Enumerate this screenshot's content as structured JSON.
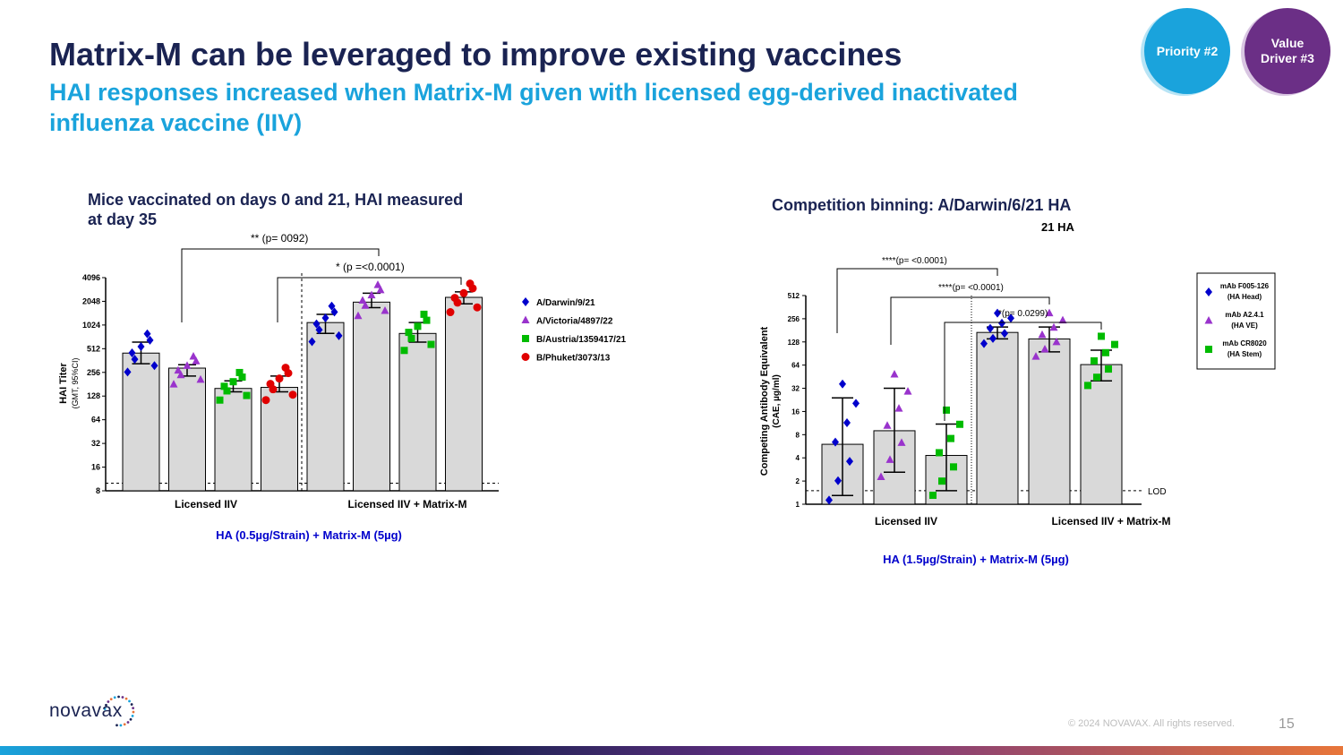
{
  "header": {
    "title": "Matrix-M can be leveraged to improve existing vaccines",
    "subtitle": "HAI responses increased when Matrix-M given with licensed egg-derived inactivated influenza vaccine (IIV)"
  },
  "badges": [
    {
      "label_line1": "Priority #2",
      "label_line2": ""
    },
    {
      "label_line1": "Value",
      "label_line2": "Driver #3"
    }
  ],
  "footer": {
    "logo": "novavax",
    "copyright": "© 2024 NOVAVAX. All rights reserved.",
    "page_number": "15"
  },
  "colors": {
    "title": "#1a2352",
    "accent": "#1aa3dc",
    "purple": "#6b2f86",
    "series_blue": "#0000cc",
    "series_purple": "#9933cc",
    "series_green": "#00bb00",
    "series_red": "#e00000"
  },
  "chart_data": [
    {
      "type": "bar",
      "title": "Mice vaccinated on days 0 and 21, HAI measured at day 35",
      "ylabel": "HAI Titer",
      "ylabel_sub": "(GMT, 95%CI)",
      "yscale": "log2",
      "ylim": [
        8,
        4096
      ],
      "yticks": [
        "4096",
        "2048",
        "1024",
        "512",
        "256",
        "128",
        "64",
        "32",
        "16",
        "8"
      ],
      "yticks_values": [
        4096,
        2048,
        1024,
        512,
        256,
        128,
        64,
        32,
        16,
        8
      ],
      "xgroups": [
        "Licensed IIV",
        "Licensed IIV + Matrix-M"
      ],
      "xlabel": "HA (0.5µg/Strain) + Matrix-M (5µg)",
      "series_names": [
        "A/Darwin/9/21",
        "A/Victoria/4897/22",
        "B/Austria/1359417/21",
        "B/Phuket/3073/13"
      ],
      "bars": [
        {
          "group": "Licensed IIV",
          "series": "A/Darwin/9/21",
          "value": 450,
          "ci": [
            330,
            620
          ]
        },
        {
          "group": "Licensed IIV",
          "series": "A/Victoria/4897/22",
          "value": 290,
          "ci": [
            230,
            320
          ]
        },
        {
          "group": "Licensed IIV",
          "series": "B/Austria/1359417/21",
          "value": 160,
          "ci": [
            145,
            200
          ]
        },
        {
          "group": "Licensed IIV",
          "series": "B/Phuket/3073/13",
          "value": 165,
          "ci": [
            145,
            230
          ]
        },
        {
          "group": "Licensed IIV + Matrix-M",
          "series": "A/Darwin/9/21",
          "value": 1100,
          "ci": [
            800,
            1400
          ]
        },
        {
          "group": "Licensed IIV + Matrix-M",
          "series": "A/Victoria/4897/22",
          "value": 2000,
          "ci": [
            1700,
            2600
          ]
        },
        {
          "group": "Licensed IIV + Matrix-M",
          "series": "B/Austria/1359417/21",
          "value": 800,
          "ci": [
            620,
            1100
          ]
        },
        {
          "group": "Licensed IIV + Matrix-M",
          "series": "B/Phuket/3073/13",
          "value": 2300,
          "ci": [
            1900,
            2700
          ]
        }
      ],
      "reference_line": 10,
      "annotations": [
        {
          "text": "(p= 0092)",
          "stars": "**"
        },
        {
          "text": "(p =<0.0001)",
          "stars": "*"
        }
      ]
    },
    {
      "type": "bar",
      "title": "Competition binning: A/Darwin/6/21 HA",
      "title_fragment": "21 HA",
      "ylabel": "Competing Antibody Equivalent",
      "ylabel_sub": "(CAE, µg/ml)",
      "yscale": "log2",
      "ylim": [
        1,
        512
      ],
      "yticks": [
        "512",
        "256",
        "128",
        "64",
        "32",
        "16",
        "8",
        "4",
        "2",
        "1"
      ],
      "yticks_values": [
        512,
        256,
        128,
        64,
        32,
        16,
        8,
        4,
        2,
        1
      ],
      "xgroups": [
        "Licensed IIV",
        "Licensed IIV + Matrix-M"
      ],
      "xlabel": "HA (1.5µg/Strain) + Matrix-M (5µg)",
      "series_names": [
        "mAb F005-126 (HA Head)",
        "mAb A2.4.1 (HA VE)",
        "mAb CR8020 (HA Stem)"
      ],
      "legend": [
        {
          "line1": "mAb F005-126",
          "line2": "(HA Head)"
        },
        {
          "line1": "mAb A2.4.1",
          "line2": "(HA VE)"
        },
        {
          "line1": "mAb CR8020",
          "line2": "(HA Stem)"
        }
      ],
      "bars": [
        {
          "group": "Licensed IIV",
          "series": "mAb F005-126 (HA Head)",
          "value": 6,
          "ci": [
            1.3,
            24
          ]
        },
        {
          "group": "Licensed IIV",
          "series": "mAb A2.4.1 (HA VE)",
          "value": 9,
          "ci": [
            2.6,
            32
          ]
        },
        {
          "group": "Licensed IIV",
          "series": "mAb CR8020 (HA Stem)",
          "value": 4.3,
          "ci": [
            1.5,
            11
          ]
        },
        {
          "group": "Licensed IIV + Matrix-M",
          "series": "mAb F005-126 (HA Head)",
          "value": 170,
          "ci": [
            140,
            200
          ]
        },
        {
          "group": "Licensed IIV + Matrix-M",
          "series": "mAb A2.4.1 (HA VE)",
          "value": 140,
          "ci": [
            95,
            200
          ]
        },
        {
          "group": "Licensed IIV + Matrix-M",
          "series": "mAb CR8020 (HA Stem)",
          "value": 65,
          "ci": [
            40,
            100
          ]
        }
      ],
      "reference_label": "LOD",
      "reference_line": 1.5,
      "annotations": [
        {
          "text": "(p= <0.0001)",
          "stars": "****"
        },
        {
          "text": "(p= <0.0001)",
          "stars": "****"
        },
        {
          "text": "(p= 0.0299)",
          "stars": "*"
        }
      ]
    }
  ]
}
